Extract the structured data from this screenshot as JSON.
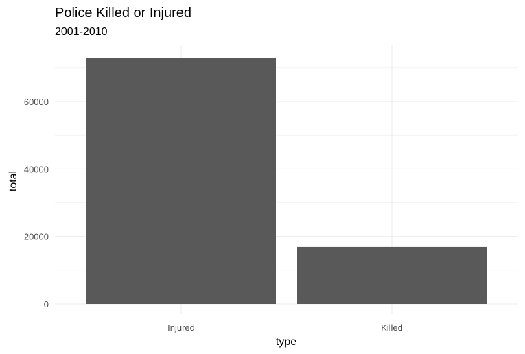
{
  "chart_data": {
    "type": "bar",
    "title": "Police Killed or Injured",
    "subtitle": "2001-2010",
    "xlabel": "type",
    "ylabel": "total",
    "categories": [
      "Injured",
      "Killed"
    ],
    "values": [
      73000,
      16900
    ],
    "ylim": [
      0,
      70000
    ],
    "yticks": [
      0,
      20000,
      40000,
      60000
    ],
    "ytick_labels": [
      "0",
      "20000",
      "40000",
      "60000"
    ],
    "grid": true,
    "legend": "none",
    "colors": {
      "bar": "#595959",
      "grid": "#ebebeb",
      "tick_text": "#4d4d4d"
    }
  }
}
